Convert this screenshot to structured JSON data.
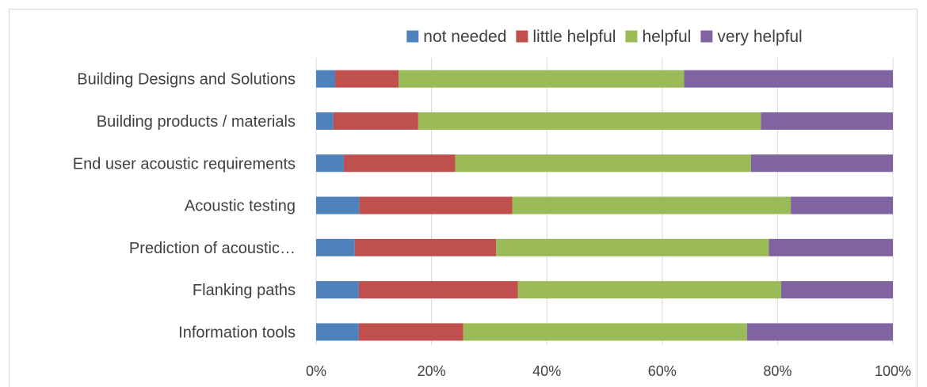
{
  "chart_data": {
    "type": "bar",
    "orientation": "horizontal",
    "stacked": "percent",
    "categories": [
      "Building Designs and Solutions",
      "Building products / materials",
      "End user acoustic requirements",
      "Acoustic testing",
      "Prediction of acoustic…",
      "Flanking paths",
      "Information tools"
    ],
    "series": [
      {
        "name": "not needed",
        "color": "#4f81bd",
        "values": [
          3.3,
          3.0,
          4.8,
          7.5,
          6.7,
          7.4,
          7.4
        ]
      },
      {
        "name": "little helpful",
        "color": "#c0504d",
        "values": [
          11.0,
          14.7,
          19.3,
          26.5,
          24.5,
          27.6,
          18.1
        ]
      },
      {
        "name": "helpful",
        "color": "#9bbb59",
        "values": [
          49.5,
          59.4,
          51.3,
          48.3,
          47.3,
          45.6,
          49.2
        ]
      },
      {
        "name": "very helpful",
        "color": "#8064a2",
        "values": [
          36.2,
          22.9,
          24.6,
          17.7,
          21.5,
          19.4,
          25.3
        ]
      }
    ],
    "xticks": [
      "0%",
      "20%",
      "40%",
      "60%",
      "80%",
      "100%"
    ],
    "xlim": [
      0,
      100
    ],
    "grid": "vertical",
    "legend": "top"
  }
}
